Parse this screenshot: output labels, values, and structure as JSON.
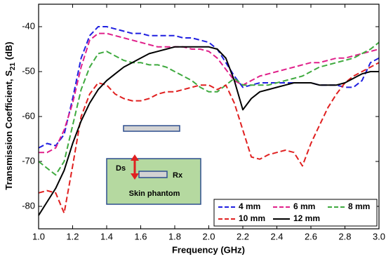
{
  "chart_data": {
    "type": "line",
    "xlabel": "Frequency (GHz)",
    "ylabel": [
      "Transmission Coefficient, S",
      "21",
      " (dB)"
    ],
    "annotations": [
      "Ds",
      "Rx",
      "Skin phantom"
    ],
    "legend": "lower right",
    "xlim": [
      1.0,
      3.0
    ],
    "ylim": [
      -85,
      -35
    ],
    "xticks": [
      {
        "value": 1,
        "label": "1.0"
      },
      1.2,
      1.4,
      1.6,
      1.8,
      {
        "value": 2,
        "label": "2.0"
      },
      2.2,
      2.4,
      2.6,
      2.8,
      {
        "value": 3,
        "label": "3.0"
      }
    ],
    "yticks": [
      -80,
      -70,
      -60,
      -50,
      -40
    ],
    "x": [
      1.0,
      1.05,
      1.1,
      1.15,
      1.2,
      1.25,
      1.3,
      1.35,
      1.4,
      1.45,
      1.5,
      1.55,
      1.6,
      1.65,
      1.7,
      1.75,
      1.8,
      1.85,
      1.9,
      1.95,
      2.0,
      2.05,
      2.1,
      2.15,
      2.2,
      2.25,
      2.3,
      2.35,
      2.4,
      2.45,
      2.5,
      2.55,
      2.6,
      2.65,
      2.7,
      2.75,
      2.8,
      2.85,
      2.9,
      2.95,
      3.0
    ],
    "series": [
      {
        "name": "4 mm",
        "color": "#1f1fe0",
        "dashed": true,
        "values": [
          -67,
          -66,
          -66.5,
          -64,
          -56,
          -47,
          -42,
          -40,
          -40,
          -40.5,
          -41,
          -41.5,
          -41.5,
          -42,
          -42,
          -42,
          -42,
          -42.5,
          -42.5,
          -43,
          -43.5,
          -45,
          -48,
          -51,
          -53.5,
          -53,
          -52.5,
          -52.5,
          -52.5,
          -52.5,
          -52.5,
          -52.5,
          -52.5,
          -53,
          -53,
          -53,
          -53.5,
          -53.5,
          -52,
          -48,
          -47
        ]
      },
      {
        "name": "6 mm",
        "color": "#e0208a",
        "dashed": true,
        "values": [
          -68,
          -68,
          -67,
          -63,
          -57,
          -49,
          -43,
          -41.5,
          -41.5,
          -42,
          -42.5,
          -43,
          -43.5,
          -44,
          -44.5,
          -44.5,
          -44.5,
          -44.5,
          -45,
          -45,
          -45.5,
          -47,
          -49.5,
          -52,
          -53,
          -52,
          -51,
          -50.5,
          -50,
          -49.5,
          -49,
          -48.5,
          -48,
          -48,
          -47.5,
          -47,
          -47,
          -46.5,
          -46,
          -45.5,
          -45
        ]
      },
      {
        "name": "8 mm",
        "color": "#3faa3f",
        "dashed": true,
        "values": [
          -70,
          -71.5,
          -73,
          -70,
          -62,
          -54,
          -49,
          -46,
          -45.5,
          -46.5,
          -47.5,
          -48,
          -48,
          -48.5,
          -48.5,
          -49,
          -50,
          -51,
          -52,
          -53.5,
          -54.5,
          -54.5,
          -53,
          -51.5,
          -53,
          -53,
          -53,
          -53,
          -52.5,
          -52,
          -51.5,
          -51,
          -50,
          -49,
          -48.5,
          -48,
          -47.5,
          -47,
          -46,
          -45,
          -43.5
        ]
      },
      {
        "name": "10 mm",
        "color": "#e02020",
        "dashed": true,
        "values": [
          -77,
          -76.5,
          -77,
          -81.5,
          -71,
          -60,
          -55,
          -52.5,
          -53,
          -55,
          -56,
          -56.5,
          -56.5,
          -56,
          -55,
          -54.5,
          -54.5,
          -54,
          -53.5,
          -53,
          -53,
          -54,
          -53,
          -57,
          -63,
          -69,
          -69.5,
          -68.5,
          -68,
          -67.5,
          -68,
          -71,
          -66,
          -62,
          -58,
          -55,
          -52.5,
          -51,
          -50,
          -49,
          -48
        ]
      },
      {
        "name": "12 mm",
        "color": "#000000",
        "dashed": false,
        "values": [
          -82,
          -79,
          -76,
          -72,
          -66,
          -61,
          -57,
          -54,
          -52,
          -50.5,
          -49,
          -48,
          -47,
          -46,
          -45.5,
          -45,
          -44.5,
          -44.5,
          -44.5,
          -44.5,
          -44.5,
          -45,
          -47,
          -52,
          -58.5,
          -56,
          -54.5,
          -54,
          -53.5,
          -53,
          -52.5,
          -52.5,
          -52.5,
          -53,
          -53,
          -53,
          -52.5,
          -51.5,
          -50.5,
          -50,
          -50
        ]
      }
    ]
  }
}
